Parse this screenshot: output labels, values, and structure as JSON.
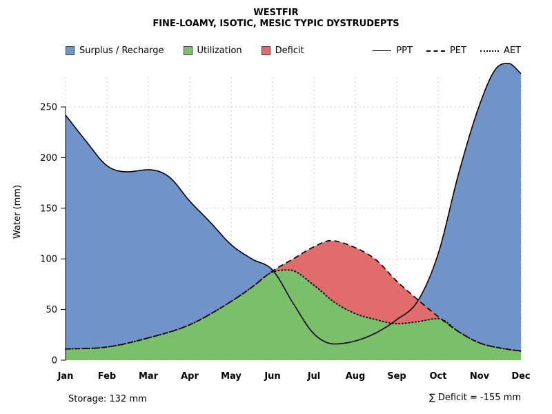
{
  "chart_data": {
    "type": "area",
    "title": "WESTFIR",
    "subtitle": "FINE-LOAMY, ISOTIC, MESIC TYPIC DYSTRUDEPTS",
    "ylabel": "Water (mm)",
    "xlabel": "",
    "x_ticks": [
      "Jan",
      "Feb",
      "Mar",
      "Apr",
      "May",
      "Jun",
      "Jul",
      "Aug",
      "Sep",
      "Oct",
      "Nov",
      "Dec"
    ],
    "y_ticks": [
      0,
      50,
      100,
      150,
      200,
      250
    ],
    "ylim": [
      0,
      292
    ],
    "grid": true,
    "legend_position": "top",
    "colors": {
      "surplus": "#7094c8",
      "utilization": "#7bbf6a",
      "deficit": "#e06c6c",
      "line": "#000000",
      "grid": "#c9c9c9"
    },
    "areas_legend": [
      {
        "label": "Surplus / Recharge",
        "key": "surplus"
      },
      {
        "label": "Utilization",
        "key": "utilization"
      },
      {
        "label": "Deficit",
        "key": "deficit"
      }
    ],
    "lines_legend": [
      {
        "label": "PPT",
        "style": "solid"
      },
      {
        "label": "PET",
        "style": "dashed"
      },
      {
        "label": "AET",
        "style": "dotted"
      }
    ],
    "series": [
      {
        "name": "PPT",
        "style": "solid",
        "points": [
          [
            0,
            242
          ],
          [
            0.5,
            216
          ],
          [
            1,
            192
          ],
          [
            1.5,
            186
          ],
          [
            2,
            188
          ],
          [
            2.5,
            181
          ],
          [
            3,
            157
          ],
          [
            3.5,
            136
          ],
          [
            4,
            114
          ],
          [
            4.5,
            100
          ],
          [
            5,
            89
          ],
          [
            5.5,
            56
          ],
          [
            6,
            26
          ],
          [
            6.5,
            16
          ],
          [
            7,
            19
          ],
          [
            7.5,
            27
          ],
          [
            8,
            40
          ],
          [
            8.5,
            58
          ],
          [
            9,
            105
          ],
          [
            9.5,
            185
          ],
          [
            10,
            252
          ],
          [
            10.4,
            288
          ],
          [
            10.7,
            293
          ],
          [
            11,
            283
          ]
        ]
      },
      {
        "name": "PET",
        "style": "dashed",
        "points": [
          [
            0,
            11
          ],
          [
            1,
            13
          ],
          [
            2,
            22
          ],
          [
            3,
            35
          ],
          [
            4,
            58
          ],
          [
            4.5,
            72
          ],
          [
            5,
            88
          ],
          [
            5.5,
            100
          ],
          [
            6,
            112
          ],
          [
            6.4,
            118
          ],
          [
            7,
            111
          ],
          [
            7.5,
            99
          ],
          [
            8,
            78
          ],
          [
            8.5,
            60
          ],
          [
            9,
            43
          ],
          [
            9.5,
            28
          ],
          [
            10,
            17
          ],
          [
            10.5,
            12
          ],
          [
            11,
            9
          ]
        ]
      },
      {
        "name": "AET",
        "style": "dotted",
        "points": [
          [
            0,
            11
          ],
          [
            1,
            13
          ],
          [
            2,
            22
          ],
          [
            3,
            35
          ],
          [
            4,
            58
          ],
          [
            4.5,
            72
          ],
          [
            5,
            87
          ],
          [
            5.4,
            89
          ],
          [
            6,
            74
          ],
          [
            6.5,
            57
          ],
          [
            7,
            46
          ],
          [
            7.5,
            40
          ],
          [
            8,
            36
          ],
          [
            8.5,
            38
          ],
          [
            9,
            41
          ],
          [
            9.5,
            28
          ],
          [
            10,
            17
          ],
          [
            10.5,
            12
          ],
          [
            11,
            9
          ]
        ]
      }
    ],
    "annotations": {
      "storage": "Storage: 132 mm",
      "deficit_sum": "∑ Deficit = -155 mm"
    }
  }
}
